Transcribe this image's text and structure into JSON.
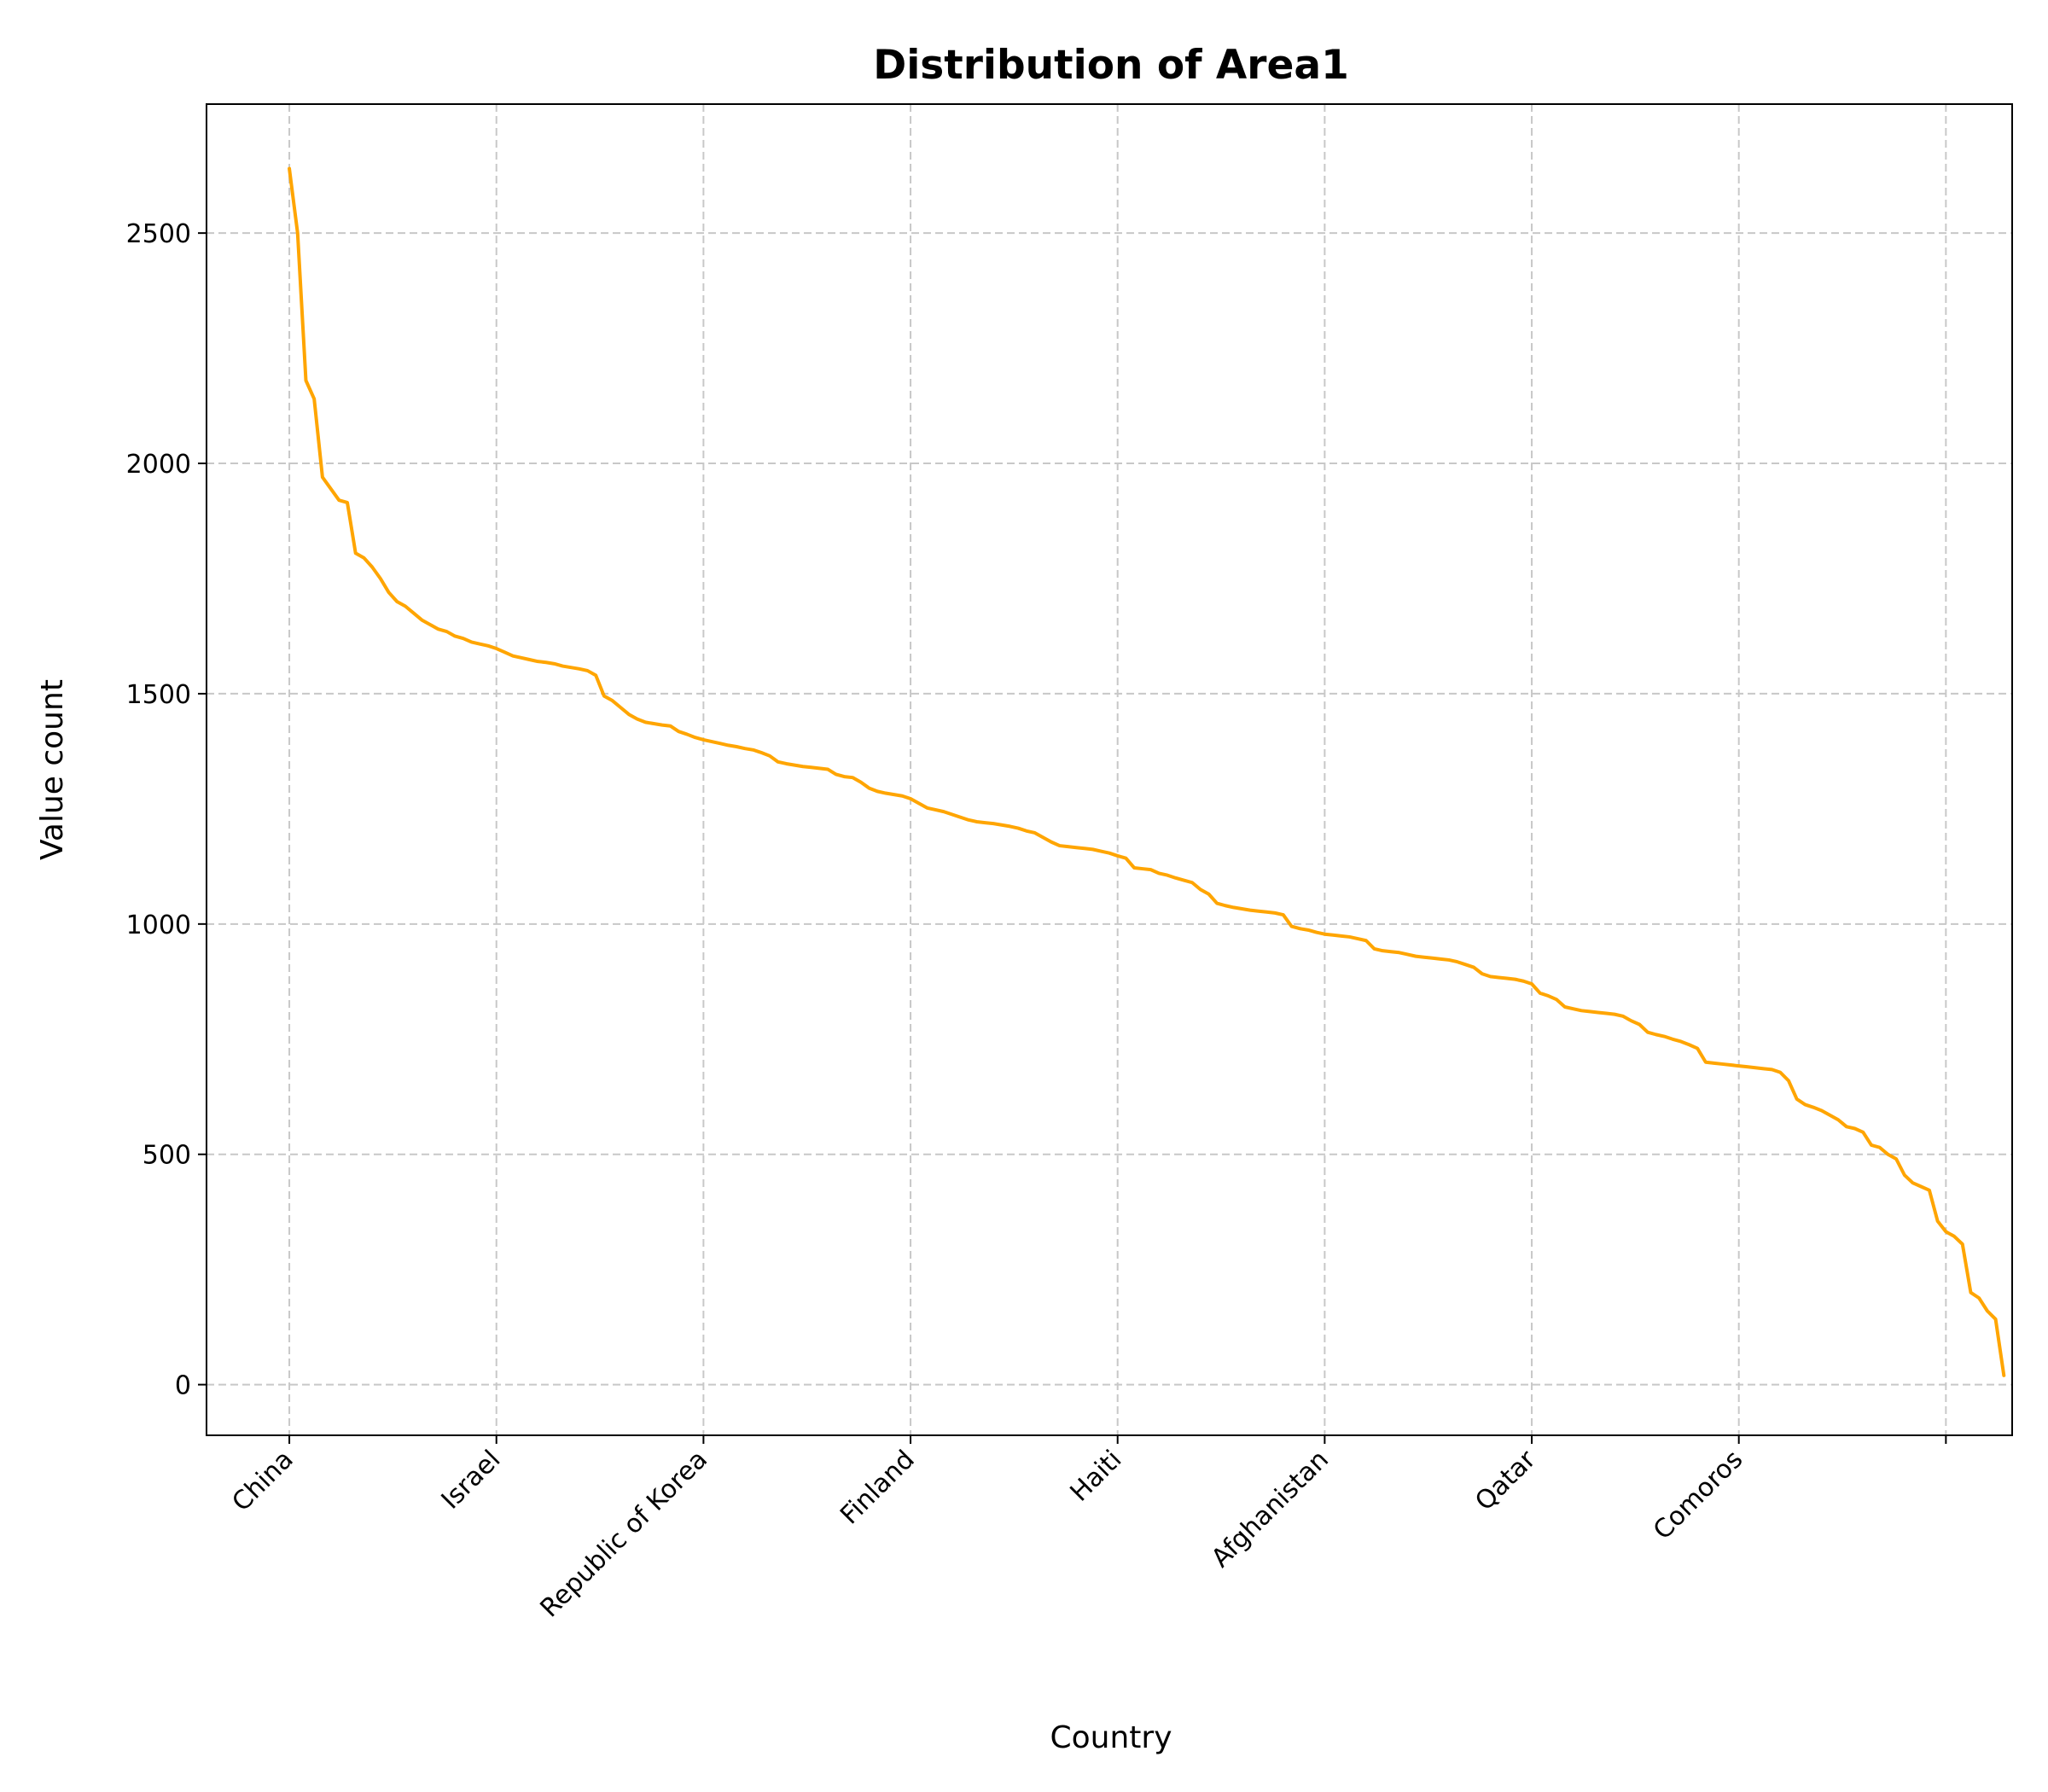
{
  "chart_data": {
    "type": "line",
    "title": "Distribution of Area1",
    "xlabel": "Country",
    "ylabel": "Value count",
    "x_tick_labels": [
      "China",
      "Israel",
      "Republic of Korea",
      "Finland",
      "Haiti",
      "Afghanistan",
      "Qatar",
      "Comoros",
      ""
    ],
    "x_tick_positions": [
      0,
      25,
      50,
      75,
      100,
      125,
      150,
      175,
      200
    ],
    "xlim": [
      -10,
      208
    ],
    "ylim": [
      -110,
      2780
    ],
    "y_ticks": [
      0,
      500,
      1000,
      1500,
      2000,
      2500
    ],
    "grid": true,
    "color": "#ffa500",
    "series": [
      {
        "values": [
          2640,
          2500,
          2180,
          2140,
          1970,
          1945,
          1920,
          1915,
          1805,
          1795,
          1775,
          1750,
          1720,
          1700,
          1690,
          1675,
          1660,
          1650,
          1640,
          1635,
          1625,
          1620,
          1612,
          1608,
          1604,
          1598,
          1590,
          1582,
          1578,
          1574,
          1570,
          1568,
          1565,
          1560,
          1557,
          1554,
          1550,
          1540,
          1495,
          1485,
          1470,
          1455,
          1445,
          1438,
          1435,
          1432,
          1430,
          1418,
          1412,
          1405,
          1400,
          1396,
          1392,
          1388,
          1385,
          1381,
          1378,
          1372,
          1365,
          1352,
          1348,
          1345,
          1342,
          1340,
          1338,
          1336,
          1325,
          1320,
          1318,
          1308,
          1295,
          1288,
          1284,
          1281,
          1278,
          1272,
          1262,
          1252,
          1248,
          1244,
          1238,
          1232,
          1226,
          1222,
          1220,
          1218,
          1215,
          1212,
          1208,
          1202,
          1198,
          1188,
          1178,
          1170,
          1168,
          1166,
          1164,
          1162,
          1158,
          1154,
          1148,
          1143,
          1122,
          1120,
          1118,
          1110,
          1106,
          1100,
          1095,
          1090,
          1075,
          1065,
          1045,
          1040,
          1036,
          1033,
          1030,
          1028,
          1026,
          1024,
          1020,
          995,
          990,
          987,
          982,
          978,
          976,
          974,
          972,
          968,
          964,
          946,
          942,
          940,
          938,
          934,
          930,
          928,
          926,
          924,
          922,
          918,
          912,
          906,
          892,
          886,
          884,
          882,
          880,
          876,
          870,
          850,
          844,
          836,
          820,
          816,
          812,
          810,
          808,
          806,
          804,
          800,
          790,
          782,
          765,
          760,
          756,
          750,
          745,
          738,
          730,
          700,
          698,
          696,
          694,
          692,
          690,
          688,
          686,
          684,
          678,
          660,
          620,
          608,
          602,
          595,
          585,
          575,
          560,
          556,
          548,
          520,
          515,
          500,
          490,
          455,
          438,
          430,
          422,
          355,
          332,
          322,
          305,
          200,
          188,
          160,
          142,
          20
        ]
      }
    ]
  }
}
